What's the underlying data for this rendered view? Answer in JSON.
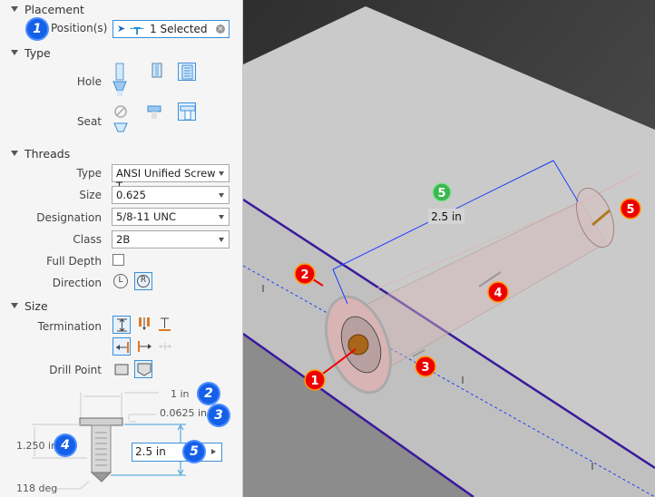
{
  "placement": {
    "title": "Placement",
    "position_label": "Position(s)",
    "position_value": "1 Selected",
    "badge": "1"
  },
  "type": {
    "title": "Type",
    "hole_label": "Hole",
    "seat_label": "Seat"
  },
  "threads": {
    "title": "Threads",
    "type_label": "Type",
    "type_value": "ANSI Unified Screw T",
    "size_label": "Size",
    "size_value": "0.625",
    "designation_label": "Designation",
    "designation_value": "5/8-11 UNC",
    "class_label": "Class",
    "class_value": "2B",
    "full_depth_label": "Full Depth",
    "full_depth_checked": false,
    "direction_label": "Direction"
  },
  "size": {
    "title": "Size",
    "termination_label": "Termination",
    "drill_point_label": "Drill Point",
    "diagram": {
      "diameter": "1 in",
      "diameter_badge": "2",
      "seat_depth": "0.0625 in",
      "seat_badge": "3",
      "thread_depth": "1.250 in",
      "thread_badge": "4",
      "depth_value": "2.5 in",
      "depth_badge": "5",
      "angle": "118 deg"
    }
  },
  "viewport": {
    "dimension_label": "2.5 in",
    "green_badge": "5",
    "callouts": [
      "1",
      "2",
      "3",
      "4",
      "5"
    ],
    "colors": {
      "edge": "#3a1a9c",
      "dimension": "#1a3cff",
      "callout": "#e00000",
      "top_face": "#cacaca"
    }
  }
}
